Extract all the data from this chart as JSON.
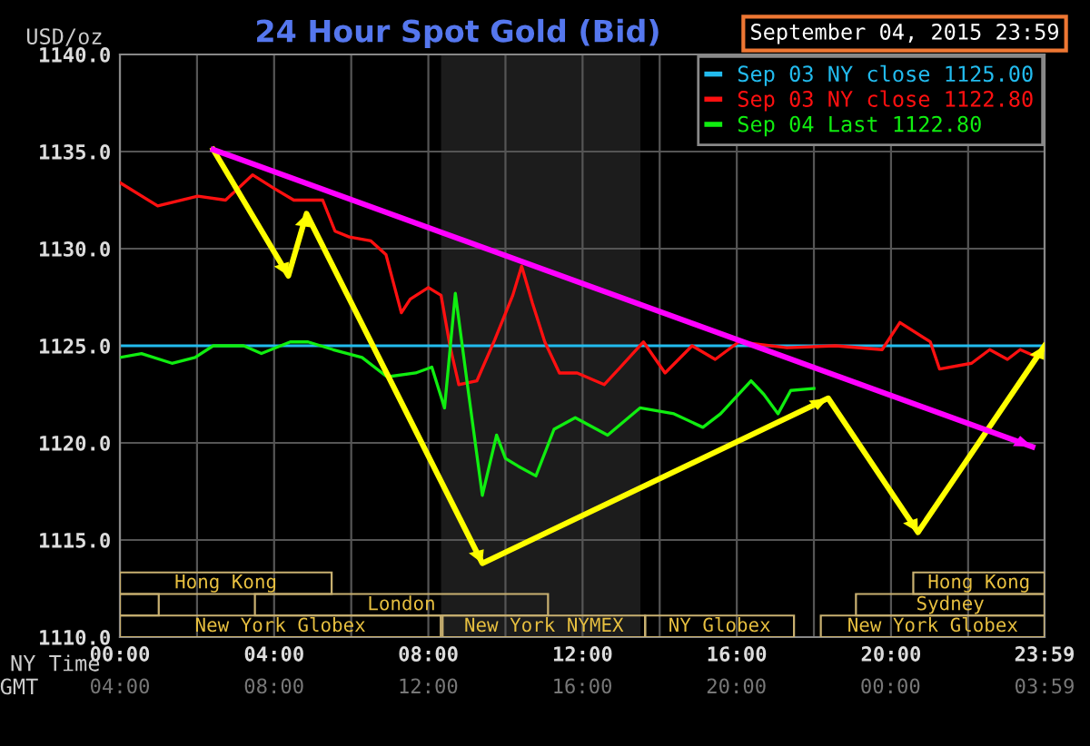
{
  "chart_data": {
    "type": "line",
    "title": "24 Hour Spot Gold (Bid)",
    "subtitle": "September 04, 2015 23:59",
    "ylabel": "USD/oz",
    "xlabel": "NY Time",
    "xlim": [
      0,
      23.983
    ],
    "xticks": [
      {
        "value": 0,
        "label": "00:00"
      },
      {
        "value": 2,
        "label": null
      },
      {
        "value": 4,
        "label": "04:00"
      },
      {
        "value": 6,
        "label": null
      },
      {
        "value": 8,
        "label": "08:00"
      },
      {
        "value": 10,
        "label": null
      },
      {
        "value": 12,
        "label": "12:00"
      },
      {
        "value": 14,
        "label": null
      },
      {
        "value": 16,
        "label": "16:00"
      },
      {
        "value": 18,
        "label": null
      },
      {
        "value": 20,
        "label": "20:00"
      },
      {
        "value": 22,
        "label": null
      },
      {
        "value": 23.983,
        "label": "23:59"
      }
    ],
    "ylim": [
      1110,
      1140
    ],
    "yticks": [
      {
        "value": 1110,
        "label": "1110.0"
      },
      {
        "value": 1115,
        "label": "1115.0"
      },
      {
        "value": 1120,
        "label": "1120.0"
      },
      {
        "value": 1125,
        "label": "1125.0"
      },
      {
        "value": 1130,
        "label": "1130.0"
      },
      {
        "value": 1135,
        "label": "1135.0"
      },
      {
        "value": 1140,
        "label": "1140.0"
      }
    ],
    "grid": true,
    "legend": "top right",
    "ref_lines": [
      {
        "axis": "y",
        "value": 1125,
        "label": "Sep 03 NY close 1125.00",
        "color": "#22bbee"
      }
    ],
    "bands": [
      {
        "axis": "x",
        "from": 8.33,
        "to": 13.5,
        "color": "#1c1c1c"
      }
    ],
    "annotations": [
      "Hong Kong",
      "Hong Kong",
      "London",
      "Sydney",
      "New York Globex",
      "New York NYMEX",
      "NY Globex",
      "New York Globex",
      "GMT",
      "04:00",
      "08:00",
      "12:00",
      "16:00",
      "20:00",
      "00:00",
      "03:59"
    ],
    "series": [
      {
        "name": "Sep 03 NY close 1122.80",
        "color": "#ff1010",
        "x": [
          0,
          0.98,
          2.02,
          2.74,
          3.44,
          4.0,
          4.51,
          5.26,
          5.58,
          5.95,
          6.51,
          6.9,
          7.3,
          7.53,
          8.0,
          8.33,
          8.56,
          8.79,
          9.26,
          9.72,
          10.19,
          10.42,
          10.7,
          11.02,
          11.4,
          11.86,
          12.56,
          12.98,
          13.58,
          14.14,
          14.84,
          15.44,
          16.05,
          17.3,
          18.56,
          19.77,
          20.23,
          21.02,
          21.26,
          22.09,
          22.56,
          23.02,
          23.35,
          23.81
        ],
        "values": [
          1133.4,
          1132.2,
          1132.7,
          1132.5,
          1133.8,
          1133.1,
          1132.5,
          1132.5,
          1130.9,
          1130.6,
          1130.4,
          1129.7,
          1126.7,
          1127.4,
          1128.0,
          1127.6,
          1125.0,
          1123.0,
          1123.2,
          1125.3,
          1127.6,
          1129.1,
          1127.2,
          1125.2,
          1123.6,
          1123.6,
          1123.0,
          1123.9,
          1125.2,
          1123.6,
          1125.0,
          1124.3,
          1125.2,
          1124.9,
          1125.0,
          1124.8,
          1126.2,
          1125.2,
          1123.8,
          1124.1,
          1124.8,
          1124.3,
          1124.8,
          1124.4
        ]
      },
      {
        "name": "Sep 04 Last 1122.80",
        "color": "#10ee10",
        "x": [
          0,
          0.56,
          1.35,
          1.95,
          2.42,
          3.21,
          3.67,
          4.42,
          4.88,
          5.53,
          6.28,
          6.93,
          7.67,
          8.09,
          8.42,
          8.7,
          9.02,
          9.4,
          9.77,
          10.0,
          10.33,
          10.79,
          11.26,
          11.81,
          12.65,
          13.49,
          14.37,
          15.12,
          15.58,
          16.37,
          16.7,
          17.07,
          17.4,
          18.0
        ],
        "values": [
          1124.4,
          1124.6,
          1124.1,
          1124.4,
          1125.0,
          1125.0,
          1124.6,
          1125.2,
          1125.2,
          1124.8,
          1124.4,
          1123.4,
          1123.6,
          1123.9,
          1121.8,
          1127.7,
          1122.9,
          1117.3,
          1120.4,
          1119.2,
          1118.8,
          1118.3,
          1120.7,
          1121.3,
          1120.4,
          1121.8,
          1121.5,
          1120.8,
          1121.5,
          1123.2,
          1122.5,
          1121.5,
          1122.7,
          1122.8
        ]
      },
      {
        "color": "#ffff00",
        "x": [
          2.42,
          4.37,
          4.84,
          9.4,
          18.37,
          20.7,
          23.983
        ],
        "values": [
          1135.1,
          1128.6,
          1131.8,
          1113.8,
          1122.3,
          1115.4,
          1125.0
        ]
      },
      {
        "color": "#ff00ff",
        "x": [
          2.42,
          23.67
        ],
        "values": [
          1135.1,
          1119.8
        ]
      }
    ]
  }
}
